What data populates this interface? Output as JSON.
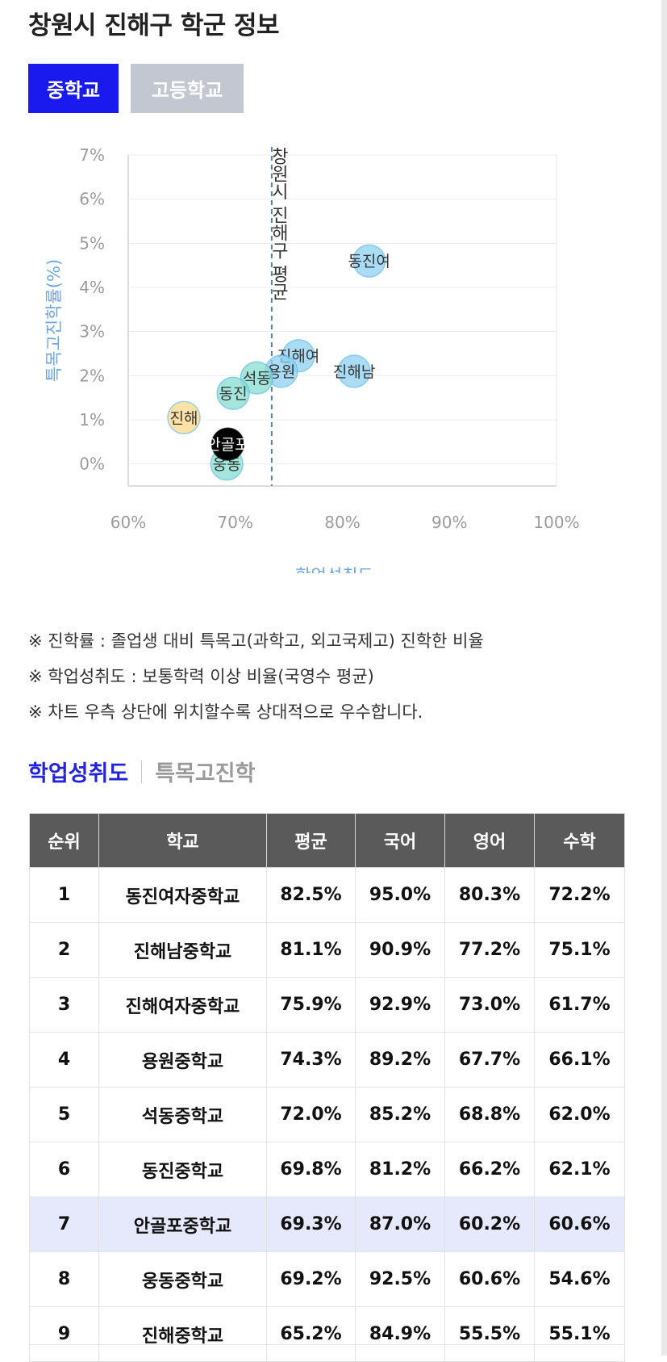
{
  "page": {
    "title": "창원시 진해구 학군 정보"
  },
  "level_tabs": [
    {
      "label": "중학교",
      "active": true
    },
    {
      "label": "고등학교",
      "active": false
    }
  ],
  "chart_data": {
    "type": "scatter",
    "xlabel": "학업성취도",
    "ylabel": "특목고진학률(%)",
    "xlim": [
      60,
      100
    ],
    "ylim": [
      -0.5,
      7
    ],
    "x_ticks": [
      "60%",
      "70%",
      "80%",
      "90%",
      "100%"
    ],
    "y_ticks": [
      "0%",
      "1%",
      "2%",
      "3%",
      "4%",
      "5%",
      "6%",
      "7%"
    ],
    "reference_line": {
      "label": "창원시 진해구 평균",
      "x": 73.4
    },
    "points": [
      {
        "label": "동진여",
        "x": 82.5,
        "y": 4.6,
        "color": "#8fd0f2"
      },
      {
        "label": "진해여",
        "x": 75.9,
        "y": 2.45,
        "color": "#8fd0f2"
      },
      {
        "label": "용원",
        "x": 74.3,
        "y": 2.1,
        "color": "#8fd0f2"
      },
      {
        "label": "진해남",
        "x": 81.1,
        "y": 2.1,
        "color": "#8fd0f2"
      },
      {
        "label": "석동",
        "x": 72.0,
        "y": 1.95,
        "color": "#86dcd0"
      },
      {
        "label": "동진",
        "x": 69.8,
        "y": 1.6,
        "color": "#86dcd0"
      },
      {
        "label": "진해",
        "x": 65.2,
        "y": 1.05,
        "color": "#fcd88a"
      },
      {
        "label": "웅동",
        "x": 69.2,
        "y": 0.0,
        "color": "#86dcd0"
      },
      {
        "label": "안골포",
        "x": 69.3,
        "y": 0.45,
        "color": "#000000"
      }
    ]
  },
  "notes": [
    "※ 진학률 : 졸업생 대비 특목고(과학고, 외고국제고) 진학한 비율",
    "※ 학업성취도 : 보통학력 이상 비율(국영수 평균)",
    "※ 차트 우측 상단에 위치할수록 상대적으로 우수합니다."
  ],
  "metric_tabs": [
    {
      "label": "학업성취도",
      "active": true
    },
    {
      "label": "특목고진학",
      "active": false
    }
  ],
  "table": {
    "headers": [
      "순위",
      "학교",
      "평균",
      "국어",
      "영어",
      "수학"
    ],
    "rows": [
      [
        "1",
        "동진여자중학교",
        "82.5%",
        "95.0%",
        "80.3%",
        "72.2%"
      ],
      [
        "2",
        "진해남중학교",
        "81.1%",
        "90.9%",
        "77.2%",
        "75.1%"
      ],
      [
        "3",
        "진해여자중학교",
        "75.9%",
        "92.9%",
        "73.0%",
        "61.7%"
      ],
      [
        "4",
        "용원중학교",
        "74.3%",
        "89.2%",
        "67.7%",
        "66.1%"
      ],
      [
        "5",
        "석동중학교",
        "72.0%",
        "85.2%",
        "68.8%",
        "62.0%"
      ],
      [
        "6",
        "동진중학교",
        "69.8%",
        "81.2%",
        "66.2%",
        "62.1%"
      ],
      [
        "7",
        "안골포중학교",
        "69.3%",
        "87.0%",
        "60.2%",
        "60.6%"
      ],
      [
        "8",
        "웅동중학교",
        "69.2%",
        "92.5%",
        "60.6%",
        "54.6%"
      ],
      [
        "9",
        "진해중학교",
        "65.2%",
        "84.9%",
        "55.5%",
        "55.1%"
      ]
    ],
    "highlight_row": 6,
    "highlight_color": "#e6e8fb"
  },
  "colors": {
    "accent": "#1a1aee",
    "tab_inactive": "#c3c7d1",
    "header_bg": "#5a5a5a",
    "axis_label": "#6ea6e0"
  }
}
